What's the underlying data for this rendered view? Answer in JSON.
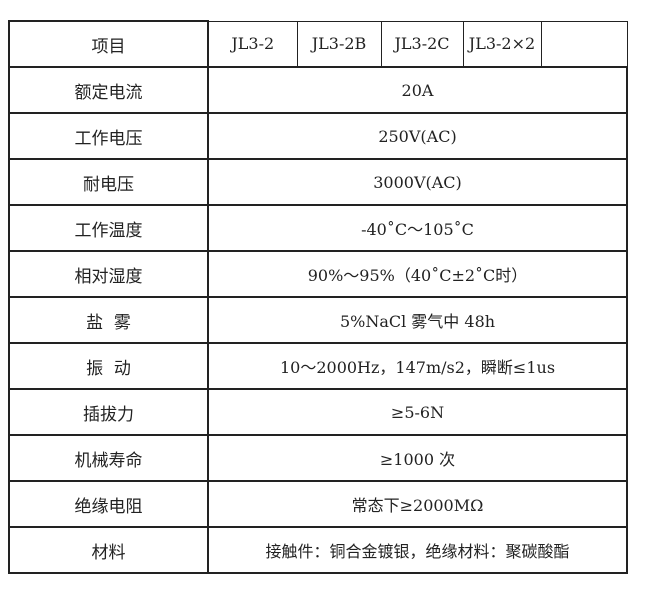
{
  "header": {
    "label": "项目",
    "models": [
      "JL3-2",
      "JL3-2B",
      "JL3-2C",
      "JL3-2×2",
      ""
    ]
  },
  "rows": [
    {
      "label": "额定电流",
      "value": "20A"
    },
    {
      "label": "工作电压",
      "value": "250V(AC)"
    },
    {
      "label": "耐电压",
      "value": "3000V(AC)"
    },
    {
      "label": "工作温度",
      "value": "-40˚C～105˚C"
    },
    {
      "label": "相对湿度",
      "value": "90%～95%（40˚C±2˚C时）"
    },
    {
      "label": "盐  雾",
      "value": "5%NaCl 雾气中 48h"
    },
    {
      "label": "振  动",
      "value": "10～2000Hz，147m/s2，瞬断≤1us"
    },
    {
      "label": "插拔力",
      "value": "≥5-6N"
    },
    {
      "label": "机械寿命",
      "value": "≥1000 次"
    },
    {
      "label": "绝缘电阻",
      "value": "常态下≥2000MΩ"
    },
    {
      "label": "材料",
      "value": "接触件：铜合金镀银，绝缘材料：聚碳酸酯"
    }
  ]
}
